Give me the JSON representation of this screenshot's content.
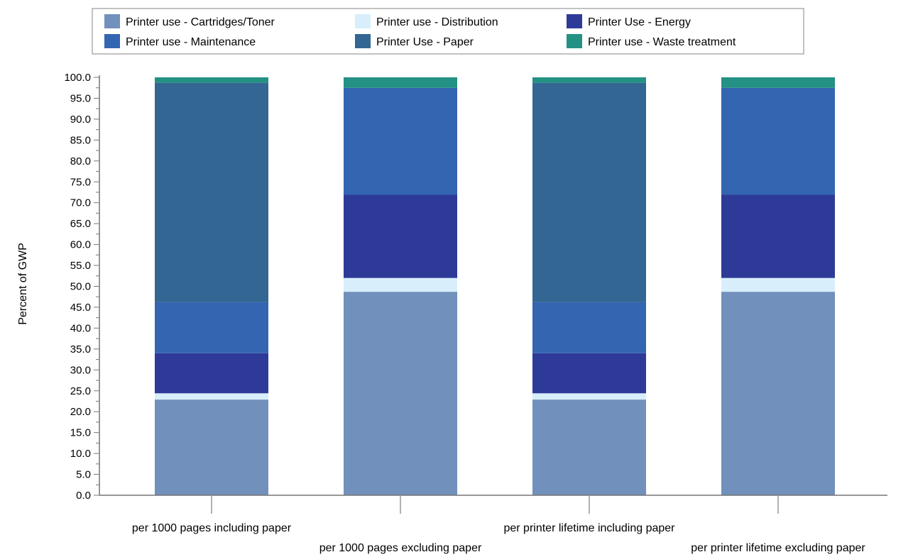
{
  "chart_data": {
    "type": "bar",
    "stacked": true,
    "title": "",
    "xlabel": "",
    "ylabel": "Percent of GWP",
    "ylim": [
      0,
      100
    ],
    "ytick_step": 5,
    "ytick_labels": [
      "0.0",
      "5.0",
      "10.0",
      "15.0",
      "20.0",
      "25.0",
      "30.0",
      "35.0",
      "40.0",
      "45.0",
      "50.0",
      "55.0",
      "60.0",
      "65.0",
      "70.0",
      "75.0",
      "80.0",
      "85.0",
      "90.0",
      "95.0",
      "100.0"
    ],
    "grid": false,
    "legend_position": "top",
    "categories": [
      "per 1000 pages including paper",
      "per 1000 pages excluding paper",
      "per printer lifetime including paper",
      "per printer lifetime excluding paper"
    ],
    "series": [
      {
        "name": "Printer use - Cartridges/Toner",
        "color": "#7190BB",
        "values": [
          22.9,
          48.7,
          22.9,
          48.7
        ]
      },
      {
        "name": "Printer use - Distribution",
        "color": "#D8EFFB",
        "values": [
          1.5,
          3.3,
          1.5,
          3.3
        ]
      },
      {
        "name": "Printer Use - Energy",
        "color": "#2E3A97",
        "values": [
          9.6,
          19.9,
          9.6,
          19.9
        ]
      },
      {
        "name": "Printer use - Maintenance",
        "color": "#3465B1",
        "values": [
          12.2,
          25.6,
          12.2,
          25.6
        ]
      },
      {
        "name": "Printer Use - Paper",
        "color": "#336693",
        "values": [
          52.5,
          0,
          52.5,
          0
        ]
      },
      {
        "name": "Printer use - Waste treatment",
        "color": "#239183",
        "values": [
          1.3,
          2.5,
          1.3,
          2.5
        ]
      }
    ],
    "legend_order": [
      0,
      1,
      2,
      3,
      4,
      5
    ]
  }
}
